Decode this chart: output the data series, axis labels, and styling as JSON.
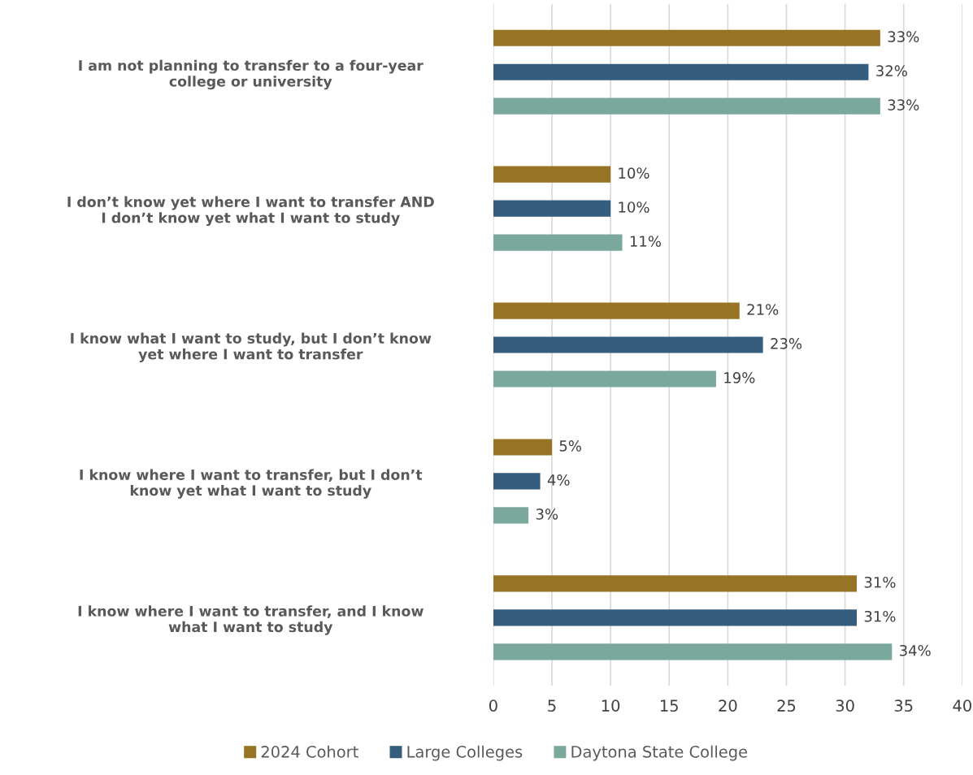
{
  "chart_data": {
    "type": "bar",
    "orientation": "horizontal",
    "categories": [
      "I am not planning to transfer to a four-year college or university",
      "I don’t know yet where I want to transfer AND I don’t know yet what I want to study",
      "I know what I want to study, but I don’t know yet where I want to transfer",
      "I know where I want to transfer, but I don’t know yet what I want to study",
      "I know where I want to transfer, and I know what I want to study"
    ],
    "series": [
      {
        "name": "2024 Cohort",
        "color": "#977325",
        "values": [
          33,
          10,
          21,
          5,
          31
        ],
        "value_labels": [
          "33%",
          "10%",
          "21%",
          "5%",
          "31%"
        ]
      },
      {
        "name": "Large Colleges",
        "color": "#355e7e",
        "values": [
          32,
          10,
          23,
          4,
          31
        ],
        "value_labels": [
          "32%",
          "10%",
          "23%",
          "4%",
          "31%"
        ]
      },
      {
        "name": "Daytona State College",
        "color": "#7ba89c",
        "values": [
          33,
          11,
          19,
          3,
          34
        ],
        "value_labels": [
          "33%",
          "11%",
          "19%",
          "3%",
          "34%"
        ]
      }
    ],
    "xlim": [
      0,
      40
    ],
    "xticks": [
      0,
      5,
      10,
      15,
      20,
      25,
      30,
      35,
      40
    ],
    "grid": "x",
    "legend": "bottom"
  }
}
